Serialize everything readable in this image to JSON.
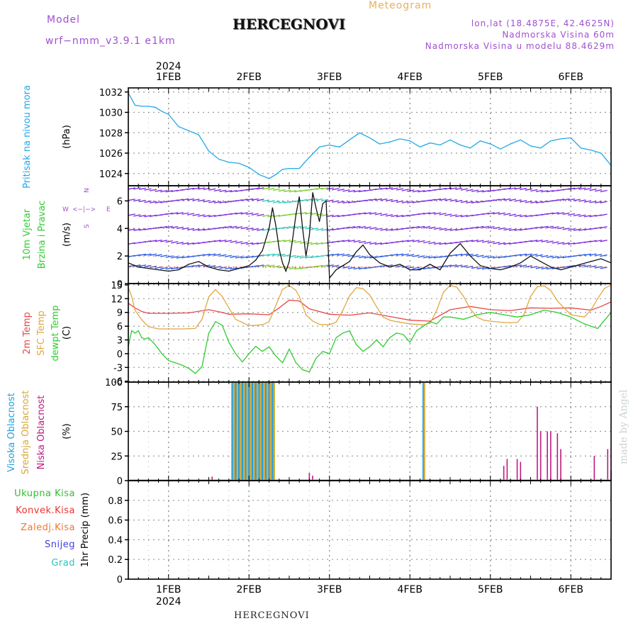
{
  "header": {
    "model_label": "Model",
    "model_name": "wrf−nmm_v3.9.1  e1km",
    "station": "HERCEGNOVI",
    "meteogram": "Meteogram",
    "lonlat": "lon,lat (18.4875E, 42.4625N)",
    "elevation": "Nadmorska Visina 60m",
    "model_elevation": "Nadmorska Visina u modelu 88.4629m",
    "credit": "made by Angel",
    "bottom_station": "HERCEGNOVI"
  },
  "colors": {
    "pressure": "#22a8e8",
    "wind_speed": "#111111",
    "wind_gust_marks": "#ee4444",
    "temp2m": "#e84848",
    "sfc_temp": "#e0a840",
    "dewpoint": "#30cc30",
    "cloud_high": "#20a0e0",
    "cloud_mid": "#d8a838",
    "cloud_low": "#c01880",
    "precip_total": "#30c030",
    "precip_conv": "#ee3030",
    "precip_frozen": "#f07830",
    "precip_snow": "#4040e0",
    "precip_graupel": "#30c0c0",
    "wind_barbs": "#8030e0"
  },
  "time_axis": {
    "top_labels": [
      "1FEB",
      "2FEB",
      "3FEB",
      "4FEB",
      "5FEB",
      "6FEB"
    ],
    "bottom_labels": [
      "1FEB",
      "2FEB",
      "3FEB",
      "4FEB",
      "5FEB",
      "6FEB"
    ],
    "year": "2024",
    "start_hour": 12,
    "end_hour": 156
  },
  "wind_direction_legend": {
    "w": "W",
    "e": "E",
    "n": "N",
    "s": "S",
    "arrow": "<−|−>"
  },
  "chart_data": [
    {
      "type": "line",
      "panel": "pressure",
      "ylabel_colored": "Pritisak na nivou mora",
      "unit": "(hPa)",
      "ylim": [
        1022.8,
        1032.4
      ],
      "yticks": [
        1024,
        1026,
        1028,
        1030,
        1032
      ],
      "grid": true,
      "series": [
        {
          "name": "Pritisak na nivou mora",
          "x": [
            12,
            14,
            16,
            18,
            20,
            22,
            24,
            27,
            30,
            33,
            36,
            39,
            42,
            45,
            48,
            51,
            54,
            56,
            58,
            60,
            63,
            66,
            69,
            72,
            75,
            78,
            81,
            84,
            87,
            90,
            93,
            96,
            99,
            102,
            105,
            108,
            111,
            114,
            117,
            120,
            123,
            126,
            129,
            132,
            135,
            138,
            141,
            144,
            147,
            150,
            153,
            156
          ],
          "values": [
            1031.9,
            1030.7,
            1030.6,
            1030.6,
            1030.5,
            1030.1,
            1029.8,
            1028.6,
            1028.2,
            1027.8,
            1026.2,
            1025.4,
            1025.1,
            1025.0,
            1024.6,
            1023.9,
            1023.5,
            1023.9,
            1024.4,
            1024.5,
            1024.5,
            1025.6,
            1026.6,
            1026.8,
            1026.6,
            1027.3,
            1028.0,
            1027.5,
            1026.9,
            1027.1,
            1027.4,
            1027.2,
            1026.6,
            1027.0,
            1026.8,
            1027.3,
            1026.8,
            1026.5,
            1027.2,
            1026.9,
            1026.4,
            1026.9,
            1027.3,
            1026.7,
            1026.5,
            1027.2,
            1027.4,
            1027.5,
            1026.5,
            1026.3,
            1026.0,
            1024.8
          ]
        }
      ]
    },
    {
      "type": "line",
      "panel": "wind",
      "ylabel_colored_1": "10m Vjetar",
      "ylabel_colored_2": "Brzina i Pravac",
      "unit": "(m/s)",
      "ylim": [
        0,
        7.1
      ],
      "yticks": [
        0,
        2,
        4,
        6
      ],
      "grid": true,
      "series": [
        {
          "name": "Brzina",
          "x": [
            12,
            15,
            18,
            21,
            24,
            27,
            30,
            33,
            36,
            39,
            42,
            45,
            48,
            50,
            52,
            54,
            55,
            56,
            57,
            58,
            59,
            60,
            61,
            62,
            63,
            64,
            65,
            66,
            67,
            68,
            69,
            70,
            71,
            72,
            74,
            76,
            78,
            80,
            82,
            84,
            87,
            90,
            93,
            96,
            99,
            102,
            105,
            108,
            111,
            114,
            117,
            120,
            123,
            126,
            129,
            132,
            135,
            138,
            141,
            144,
            147,
            150,
            153,
            156
          ],
          "values": [
            1.5,
            1.2,
            1.1,
            1.0,
            0.9,
            1.0,
            1.4,
            1.6,
            1.2,
            1.0,
            0.9,
            1.1,
            1.3,
            1.7,
            2.4,
            4.0,
            5.5,
            4.2,
            2.5,
            1.5,
            0.9,
            1.6,
            3.2,
            5.0,
            6.3,
            4.0,
            2.0,
            3.5,
            6.6,
            5.5,
            4.5,
            5.8,
            6.0,
            0.4,
            1.0,
            1.3,
            1.6,
            2.3,
            2.8,
            2.1,
            1.5,
            1.2,
            1.4,
            1.0,
            1.0,
            1.4,
            1.0,
            2.2,
            2.9,
            2.0,
            1.3,
            1.1,
            1.0,
            1.2,
            1.5,
            2.0,
            1.6,
            1.2,
            1.0,
            1.2,
            1.4,
            1.6,
            1.8,
            1.5
          ]
        }
      ]
    },
    {
      "type": "line",
      "panel": "temperature",
      "ylabel_colored_1": "2m Temp",
      "ylabel_colored_2": "SFC Temp",
      "ylabel_colored_3": "dewpt Temp",
      "unit": "(C)",
      "ylim": [
        -6.2,
        15.3
      ],
      "yticks": [
        -6,
        -3,
        0,
        3,
        6,
        9,
        12,
        15
      ],
      "grid": true,
      "series": [
        {
          "name": "2m Temp",
          "x": [
            12,
            14,
            16,
            18,
            20,
            24,
            30,
            36,
            40,
            42,
            48,
            54,
            57,
            60,
            63,
            66,
            72,
            78,
            84,
            90,
            96,
            102,
            108,
            114,
            120,
            126,
            132,
            138,
            144,
            150,
            153,
            156
          ],
          "values": [
            11.0,
            10.0,
            9.2,
            8.8,
            8.8,
            8.8,
            8.9,
            9.6,
            9.0,
            8.6,
            8.7,
            8.5,
            10.0,
            11.7,
            11.5,
            9.8,
            8.6,
            8.4,
            8.9,
            8.1,
            7.3,
            7.1,
            9.6,
            10.3,
            9.6,
            9.4,
            10.0,
            9.9,
            10.0,
            9.5,
            10.3,
            11.3
          ]
        },
        {
          "name": "SFC Temp",
          "x": [
            12,
            13,
            14,
            16,
            18,
            21,
            24,
            28,
            32,
            34,
            36,
            38,
            40,
            44,
            48,
            52,
            54,
            56,
            58,
            60,
            62,
            63,
            65,
            67,
            69,
            72,
            74,
            76,
            78,
            80,
            82,
            84,
            86,
            88,
            90,
            92,
            96,
            100,
            102,
            104,
            106,
            108,
            110,
            112,
            114,
            116,
            118,
            120,
            124,
            128,
            130,
            132,
            134,
            136,
            138,
            140,
            144,
            148,
            150,
            152,
            154,
            156
          ],
          "values": [
            14.4,
            12.5,
            9.5,
            7.4,
            5.9,
            5.4,
            5.4,
            5.4,
            5.5,
            7.5,
            12.4,
            14.0,
            12.5,
            7.5,
            6.1,
            6.3,
            7.0,
            10.5,
            14.0,
            14.9,
            13.8,
            12.5,
            8.5,
            7.1,
            6.4,
            6.3,
            6.9,
            9.5,
            12.6,
            14.4,
            14.2,
            12.8,
            10.3,
            8.0,
            7.3,
            7.0,
            6.5,
            6.3,
            6.6,
            9.5,
            13.4,
            14.9,
            14.5,
            12.5,
            9.8,
            8.0,
            7.3,
            7.1,
            6.8,
            6.8,
            8.5,
            12.5,
            14.6,
            14.8,
            13.8,
            11.5,
            8.5,
            8.0,
            9.5,
            12.0,
            14.2,
            15.0
          ]
        },
        {
          "name": "dewpt Temp",
          "x": [
            12,
            13,
            14,
            15,
            16,
            17,
            18,
            20,
            22,
            24,
            26,
            28,
            30,
            32,
            34,
            36,
            38,
            40,
            42,
            44,
            46,
            48,
            50,
            52,
            54,
            56,
            58,
            60,
            62,
            64,
            66,
            68,
            70,
            72,
            74,
            76,
            78,
            80,
            82,
            84,
            86,
            88,
            90,
            92,
            94,
            96,
            98,
            100,
            102,
            104,
            106,
            108,
            112,
            116,
            120,
            124,
            128,
            132,
            136,
            140,
            144,
            148,
            152,
            156
          ],
          "values": [
            1.5,
            5.0,
            4.5,
            5.0,
            3.5,
            3.2,
            3.5,
            2.0,
            0.0,
            -1.5,
            -2.0,
            -2.5,
            -3.2,
            -4.3,
            -2.8,
            4.5,
            7.0,
            6.2,
            2.5,
            0.0,
            -1.8,
            0.0,
            1.6,
            0.5,
            1.5,
            -0.5,
            -2.0,
            1.0,
            -2.0,
            -3.5,
            -4.0,
            -1.0,
            0.5,
            0.0,
            3.5,
            4.5,
            5.0,
            2.0,
            0.5,
            1.5,
            3.0,
            1.5,
            3.5,
            4.5,
            4.2,
            2.5,
            5.0,
            6.0,
            7.0,
            6.5,
            8.0,
            8.0,
            7.5,
            8.5,
            9.0,
            8.5,
            8.0,
            8.5,
            9.5,
            9.0,
            8.0,
            6.5,
            5.5,
            9.0
          ]
        }
      ]
    },
    {
      "type": "bar",
      "panel": "clouds",
      "ylabel_colored_1": "Visoka Oblacnost",
      "ylabel_colored_2": "Srednja Oblacnost",
      "ylabel_colored_3": "Niska  Oblacnost",
      "unit": "(%)",
      "ylim": [
        0,
        100
      ],
      "yticks": [
        0,
        25,
        50,
        75,
        100
      ],
      "grid": true,
      "series": [
        {
          "name": "Visoka Oblacnost",
          "x": [
            43,
            44,
            45,
            46,
            47,
            48,
            49,
            50,
            51,
            52,
            53,
            54,
            55,
            100
          ],
          "values": [
            100,
            100,
            100,
            100,
            100,
            100,
            100,
            100,
            100,
            100,
            100,
            100,
            100,
            100
          ]
        },
        {
          "name": "Srednja Oblacnost",
          "x": [
            43.5,
            44.5,
            45.5,
            46.5,
            47.5,
            48.5,
            49.5,
            50.5,
            51.5,
            52.5,
            53.5,
            54.5,
            55.5,
            100.3
          ],
          "values": [
            100,
            100,
            100,
            100,
            100,
            100,
            100,
            100,
            100,
            100,
            100,
            100,
            100,
            100
          ]
        },
        {
          "name": "Niska  Oblacnost",
          "x": [
            37,
            57,
            58,
            60,
            66,
            67,
            72,
            124,
            125,
            128,
            129,
            134,
            135,
            137,
            138,
            140,
            141,
            151,
            155,
            156
          ],
          "values": [
            4,
            1,
            1,
            1,
            8,
            5,
            1,
            15,
            22,
            22,
            19,
            75,
            50,
            50,
            50,
            48,
            32,
            25,
            32,
            10
          ]
        }
      ]
    },
    {
      "type": "bar",
      "panel": "precip",
      "ylabel_colored_1": "Ukupna  Kisa",
      "ylabel_colored_2": "Konvek.Kisa",
      "ylabel_colored_3": "Zaledj.Kisa",
      "ylabel_colored_4": "Snijeg",
      "ylabel_colored_5": "Grad",
      "unit": "1hr Precip (mm)",
      "ylim": [
        0,
        1
      ],
      "yticks": [
        0,
        0.2,
        0.4,
        0.6,
        0.8
      ],
      "grid": true,
      "series": [
        {
          "name": "Ukupna  Kisa",
          "x": [],
          "values": []
        }
      ]
    }
  ]
}
